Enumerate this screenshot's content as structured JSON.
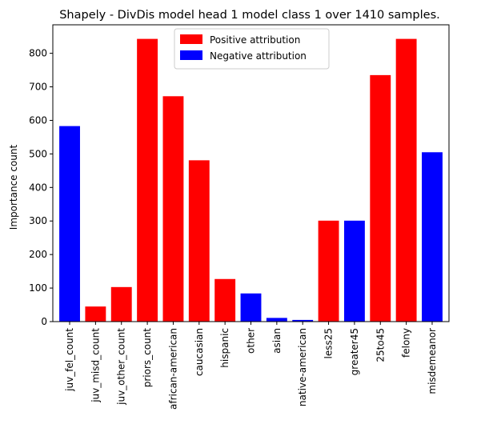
{
  "chart_data": {
    "type": "bar",
    "title": "Shapely - DivDis model head 1 model class 1 over 1410 samples.",
    "xlabel": "",
    "ylabel": "Importance count",
    "ylim": [
      0,
      885
    ],
    "yticks": [
      0,
      100,
      200,
      300,
      400,
      500,
      600,
      700,
      800
    ],
    "categories": [
      "juv_fel_count",
      "juv_misd_count",
      "juv_other_count",
      "priors_count",
      "african-american",
      "caucasian",
      "hispanic",
      "other",
      "asian",
      "native-american",
      "less25",
      "greater45",
      "25to45",
      "felony",
      "misdemeanor"
    ],
    "values": [
      583,
      45,
      103,
      843,
      672,
      481,
      127,
      84,
      11,
      5,
      301,
      301,
      735,
      843,
      505
    ],
    "attribution": [
      "negative",
      "positive",
      "positive",
      "positive",
      "positive",
      "positive",
      "positive",
      "negative",
      "negative",
      "negative",
      "positive",
      "negative",
      "positive",
      "positive",
      "negative"
    ],
    "colors": {
      "positive": "#ff0000",
      "negative": "#0000ff"
    },
    "legend": {
      "position": "upper center",
      "entries": [
        {
          "label": "Positive attribution",
          "color": "#ff0000"
        },
        {
          "label": "Negative attribution",
          "color": "#0000ff"
        }
      ]
    },
    "grid": false
  }
}
